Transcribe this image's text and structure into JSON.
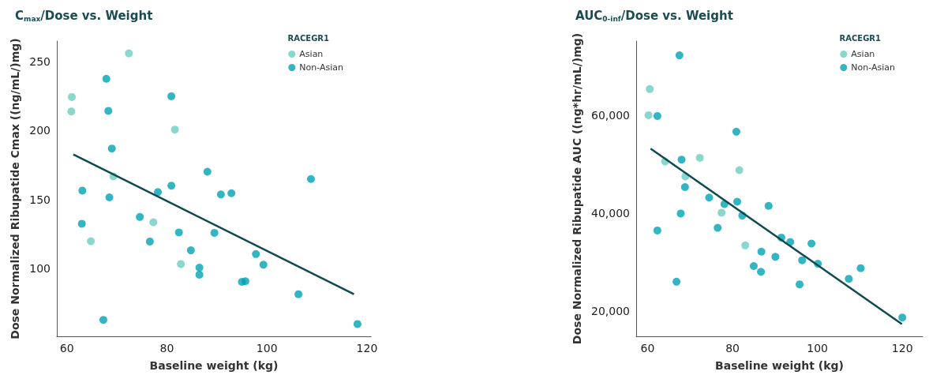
{
  "chart_data": [
    {
      "type": "scatter",
      "title": "C$_{max}$/Dose vs. Weight",
      "xlabel": "Baseline weight (kg)",
      "ylabel": "Dose Normalized Ribupatide Cmax ((ng/mL/)mg)",
      "legend_title": "RACEGR1",
      "legend": "top right",
      "grid": false,
      "marker": "circle",
      "xlim": [
        58,
        120.8
      ],
      "xticks": [
        60,
        80,
        100,
        120
      ],
      "ylim": [
        50.8,
        264.8
      ],
      "yticks": [
        100,
        150,
        200,
        250
      ],
      "series": [
        {
          "name": "Asian",
          "color": "#6ccdc0",
          "x": [
            72.4,
            61.0,
            60.9,
            81.6,
            69.3,
            77.3,
            64.8,
            82.8
          ],
          "values": [
            255.9,
            224.2,
            213.8,
            200.6,
            166.7,
            133.5,
            119.7,
            103.2
          ]
        },
        {
          "name": "Non-Asian",
          "color": "#00a3b4",
          "x": [
            67.9,
            80.9,
            68.3,
            69.0,
            88.1,
            108.8,
            63.1,
            80.9,
            78.2,
            68.5,
            90.8,
            92.9,
            74.6,
            63.0,
            76.6,
            82.4,
            89.5,
            84.8,
            97.8,
            99.3,
            86.5,
            86.5,
            95.0,
            95.7,
            106.3,
            67.3,
            118.1
          ],
          "values": [
            237.5,
            224.8,
            214.2,
            186.9,
            170.1,
            164.8,
            156.4,
            160.0,
            155.3,
            151.5,
            153.6,
            154.5,
            137.3,
            132.4,
            119.5,
            126.1,
            125.8,
            113.1,
            110.4,
            102.7,
            100.6,
            95.5,
            90.3,
            90.7,
            81.3,
            62.7,
            59.7
          ]
        },
        {
          "type": "line",
          "marker": "none",
          "color": "#0e4a4f",
          "x": [
            61.3,
            117.4
          ],
          "values": [
            182.6,
            81.4
          ]
        }
      ]
    },
    {
      "type": "scatter",
      "title": "AUC$_{0-inf}$/Dose vs. Weight",
      "xlabel": "Baseline weight (kg)",
      "ylabel": "Dose Normalized Ribupatide AUC ((ng*hr/mL/)mg)",
      "legend_title": "RACEGR1",
      "legend": "top right",
      "grid": false,
      "marker": "circle",
      "xlim": [
        57.3,
        124.8
      ],
      "xticks": [
        60,
        80,
        100,
        120
      ],
      "ylim": [
        14766,
        75100
      ],
      "yticks": [
        {
          "value": 20000,
          "label": "20,000"
        },
        {
          "value": 40000,
          "label": "40,000"
        },
        {
          "value": 60000,
          "label": "60,000"
        }
      ],
      "series": [
        {
          "name": "Asian",
          "color": "#6ccdc0",
          "x": [
            60.5,
            60.2,
            64.1,
            72.3,
            81.6,
            68.9,
            77.4,
            83.0
          ],
          "values": [
            65290,
            59950,
            50490,
            51240,
            48730,
            47450,
            40030,
            33350
          ]
        },
        {
          "name": "Non-Asian",
          "color": "#00a3b4",
          "x": [
            67.5,
            62.3,
            80.9,
            68.0,
            68.8,
            74.5,
            78.1,
            81.1,
            88.5,
            67.8,
            82.3,
            62.3,
            76.5,
            91.5,
            93.6,
            98.6,
            86.8,
            90.1,
            96.4,
            100.1,
            85.0,
            86.7,
            107.4,
            110.2,
            95.8,
            66.8,
            120.0
          ],
          "values": [
            72180,
            59790,
            56580,
            50870,
            45260,
            43120,
            41790,
            42270,
            41420,
            39870,
            39440,
            36400,
            36930,
            34950,
            34050,
            33720,
            32070,
            31000,
            30310,
            29610,
            29130,
            27960,
            26520,
            28700,
            25390,
            25930,
            18610
          ]
        },
        {
          "type": "line",
          "marker": "none",
          "color": "#0e4a4f",
          "x": [
            60.7,
            119.9
          ],
          "values": [
            53110,
            17280
          ]
        }
      ]
    }
  ]
}
